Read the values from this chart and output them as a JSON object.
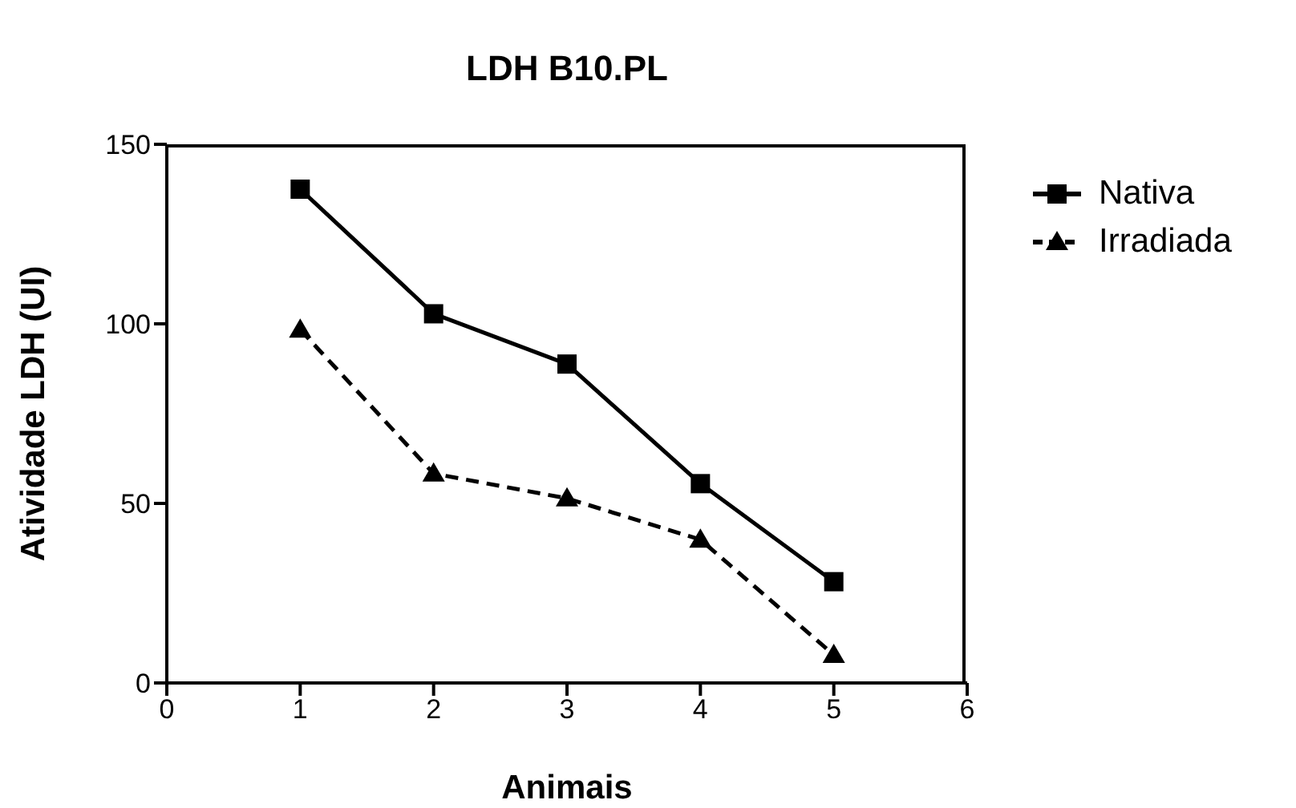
{
  "chart_data": {
    "type": "line",
    "title": "LDH B10.PL",
    "xlabel": "Animais",
    "ylabel": "Atividade LDH (UI)",
    "x": [
      1,
      2,
      3,
      4,
      5
    ],
    "series": [
      {
        "name": "Nativa",
        "color": "#000000",
        "marker": "square",
        "line_style": "solid",
        "values": [
          137.5,
          102.8,
          88.8,
          55.5,
          28.2
        ]
      },
      {
        "name": "Irradiada",
        "color": "#000000",
        "marker": "triangle",
        "line_style": "dashed",
        "values": [
          98.4,
          58.3,
          51.4,
          39.9,
          7.8
        ]
      }
    ],
    "xlim": [
      0,
      6
    ],
    "xticks": [
      0,
      1,
      2,
      3,
      4,
      5,
      6
    ],
    "ylim": [
      0,
      150
    ],
    "yticks": [
      0,
      50,
      100,
      150
    ],
    "legend": "right"
  }
}
